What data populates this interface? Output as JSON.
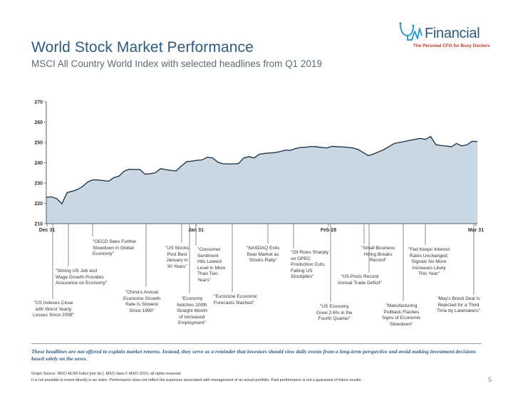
{
  "slide": {
    "title": "World Stock Market Performance",
    "subtitle": "MSCI All Country World Index with selected headlines from Q1 2019",
    "page_number": "5"
  },
  "logo": {
    "name": "Financial",
    "tagline": "The Personal CFO for Busy Doctors",
    "icon": "stethoscope-wave-icon",
    "color": "#2e5a7e"
  },
  "chart_data": {
    "type": "area",
    "ylim": [
      210,
      270
    ],
    "yticks": [
      "270",
      "260",
      "250",
      "240",
      "230",
      "220",
      "210"
    ],
    "xticks": [
      "Dec 31",
      "Jan 31",
      "Feb 28",
      "Mar 31"
    ],
    "fill_color": "#c9d8e2",
    "line_color": "#25384a",
    "grid": false,
    "series": [
      {
        "values": [
          223.0,
          223.2,
          222.3,
          219.8,
          225.3,
          226.0,
          226.8,
          228.3,
          230.6,
          231.6,
          231.5,
          231.2,
          230.9,
          232.7,
          233.4,
          235.9,
          236.8,
          236.7,
          236.7,
          234.4,
          234.6,
          235.1,
          237.1,
          236.6,
          236.2,
          236.0,
          238.4,
          240.5,
          240.8,
          241.2,
          241.4,
          242.7,
          242.4,
          240.3,
          239.5,
          239.4,
          239.4,
          239.6,
          242.3,
          243.0,
          242.4,
          244.2,
          244.6,
          244.8,
          245.0,
          245.5,
          246.2,
          246.1,
          247.0,
          247.5,
          247.7,
          248.0,
          247.9,
          247.5,
          247.3,
          248.1,
          247.9,
          247.8,
          247.6,
          247.3,
          246.6,
          245.1,
          243.5,
          244.3,
          245.4,
          246.5,
          248.0,
          249.5,
          250.0,
          250.5,
          251.0,
          251.5,
          252.0,
          251.5,
          252.9,
          248.9,
          248.5,
          248.2,
          247.9,
          249.5,
          248.3,
          248.8,
          250.6,
          250.4
        ]
      }
    ],
    "annotations": [
      "\"US Indexes Close\nwith Worst Yearly\nLosses Since 2008\"",
      "\"Strong US Job and\nWage Growth Provides\nAssurance on Economy\"",
      "\"OECD Sees Further\nSlowdown in Global\nEconomy\"",
      "\"China's Annual\nEconomic Growth\nRate Is Slowest\nSince 1990\"",
      "\"US Stocks\nPost Best\nJanuary in\n30 Years\"",
      "\"Economy\nNotches 100th\nStraight Month\nof Increased\nEmployment\"",
      "\"Consumer\nSentiment\nHits Lowest\nLevel in More\nThan Two\nYears\"",
      "\"Eurozone Economic\nForecasts Slashed\"",
      "\"NASDAQ Exits\nBear Market as\nStocks Rally\"",
      "\"Oil Rises Sharply\non OPEC\nProduction Cuts,\nFalling US\nStockpiles\"",
      "\"US Economy\nGrew 2.6% in the\nFourth Quarter\"",
      "\"Small Business\nHiring Breaks\nRecord\"",
      "\"US Posts Record\nAnnual Trade Deficit\"",
      "\"Manufacturing\nPullback Flashes\nSigns of Economic\nSlowdown\"",
      "\"Fed Keeps Interest\nRates Unchanged;\nSignals No More\nIncreases Likely\nThis Year\"",
      "\"May's Brexit Deal Is\nRejected for a Third\nTime by Lawmakers\""
    ]
  },
  "footer": {
    "disclaimer": "These headlines are not offered to explain market returns. Instead, they serve as a reminder that investors should view daily events from a long-term perspective and avoid making investment decisions based solely on the news.",
    "source_line_1": "Graph Source: MSCI ACWI Index [net div.]. MSCI data © MSCI 2019, all rights reserved.",
    "source_line_2": "It is not possible to invest directly in an index. Performance does not reflect the expenses associated with management of an actual portfolio. Past performance is not a guarantee of future results."
  }
}
